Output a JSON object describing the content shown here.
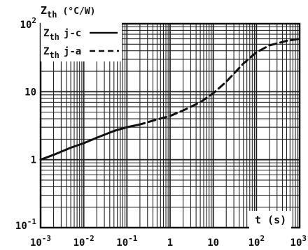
{
  "chart_data": {
    "type": "line",
    "ylabel_main": "Z",
    "ylabel_sub": "th",
    "ylabel_unit": "(°C/W)",
    "xlabel": "t (s)",
    "x_scale": "log",
    "y_scale": "log",
    "xlim": [
      0.001,
      1000
    ],
    "ylim": [
      0.1,
      100
    ],
    "grid": true,
    "legend_position": "top-left",
    "x_ticks": [
      {
        "value": 0.001,
        "base": "10",
        "exp": "-3"
      },
      {
        "value": 0.01,
        "base": "10",
        "exp": "-2"
      },
      {
        "value": 0.1,
        "base": "10",
        "exp": "-1"
      },
      {
        "value": 1,
        "base": "1",
        "exp": ""
      },
      {
        "value": 10,
        "base": "10",
        "exp": ""
      },
      {
        "value": 100,
        "base": "10",
        "exp": "2"
      },
      {
        "value": 1000,
        "base": "10",
        "exp": "3"
      }
    ],
    "y_ticks": [
      {
        "value": 100,
        "base": "10",
        "exp": "2"
      },
      {
        "value": 10,
        "base": "10",
        "exp": ""
      },
      {
        "value": 1,
        "base": "1",
        "exp": ""
      },
      {
        "value": 0.1,
        "base": "10",
        "exp": "-1"
      }
    ],
    "series": [
      {
        "name_main": "Z",
        "name_sub": "th",
        "name_tag": "j-c",
        "style": "solid",
        "color": "#111111",
        "x": [
          0.001,
          0.002,
          0.005,
          0.01,
          0.02,
          0.05,
          0.1,
          0.2
        ],
        "y": [
          1.0,
          1.18,
          1.5,
          1.75,
          2.1,
          2.65,
          3.0,
          3.3
        ]
      },
      {
        "name_main": "Z",
        "name_sub": "th",
        "name_tag": "j-a",
        "style": "dashed",
        "color": "#111111",
        "x": [
          0.1,
          0.2,
          0.5,
          1,
          2,
          5,
          10,
          20,
          50,
          100,
          200,
          500,
          1000
        ],
        "y": [
          3.0,
          3.3,
          3.9,
          4.4,
          5.3,
          7.0,
          9.5,
          14,
          26,
          38,
          48,
          56,
          60
        ]
      }
    ]
  }
}
